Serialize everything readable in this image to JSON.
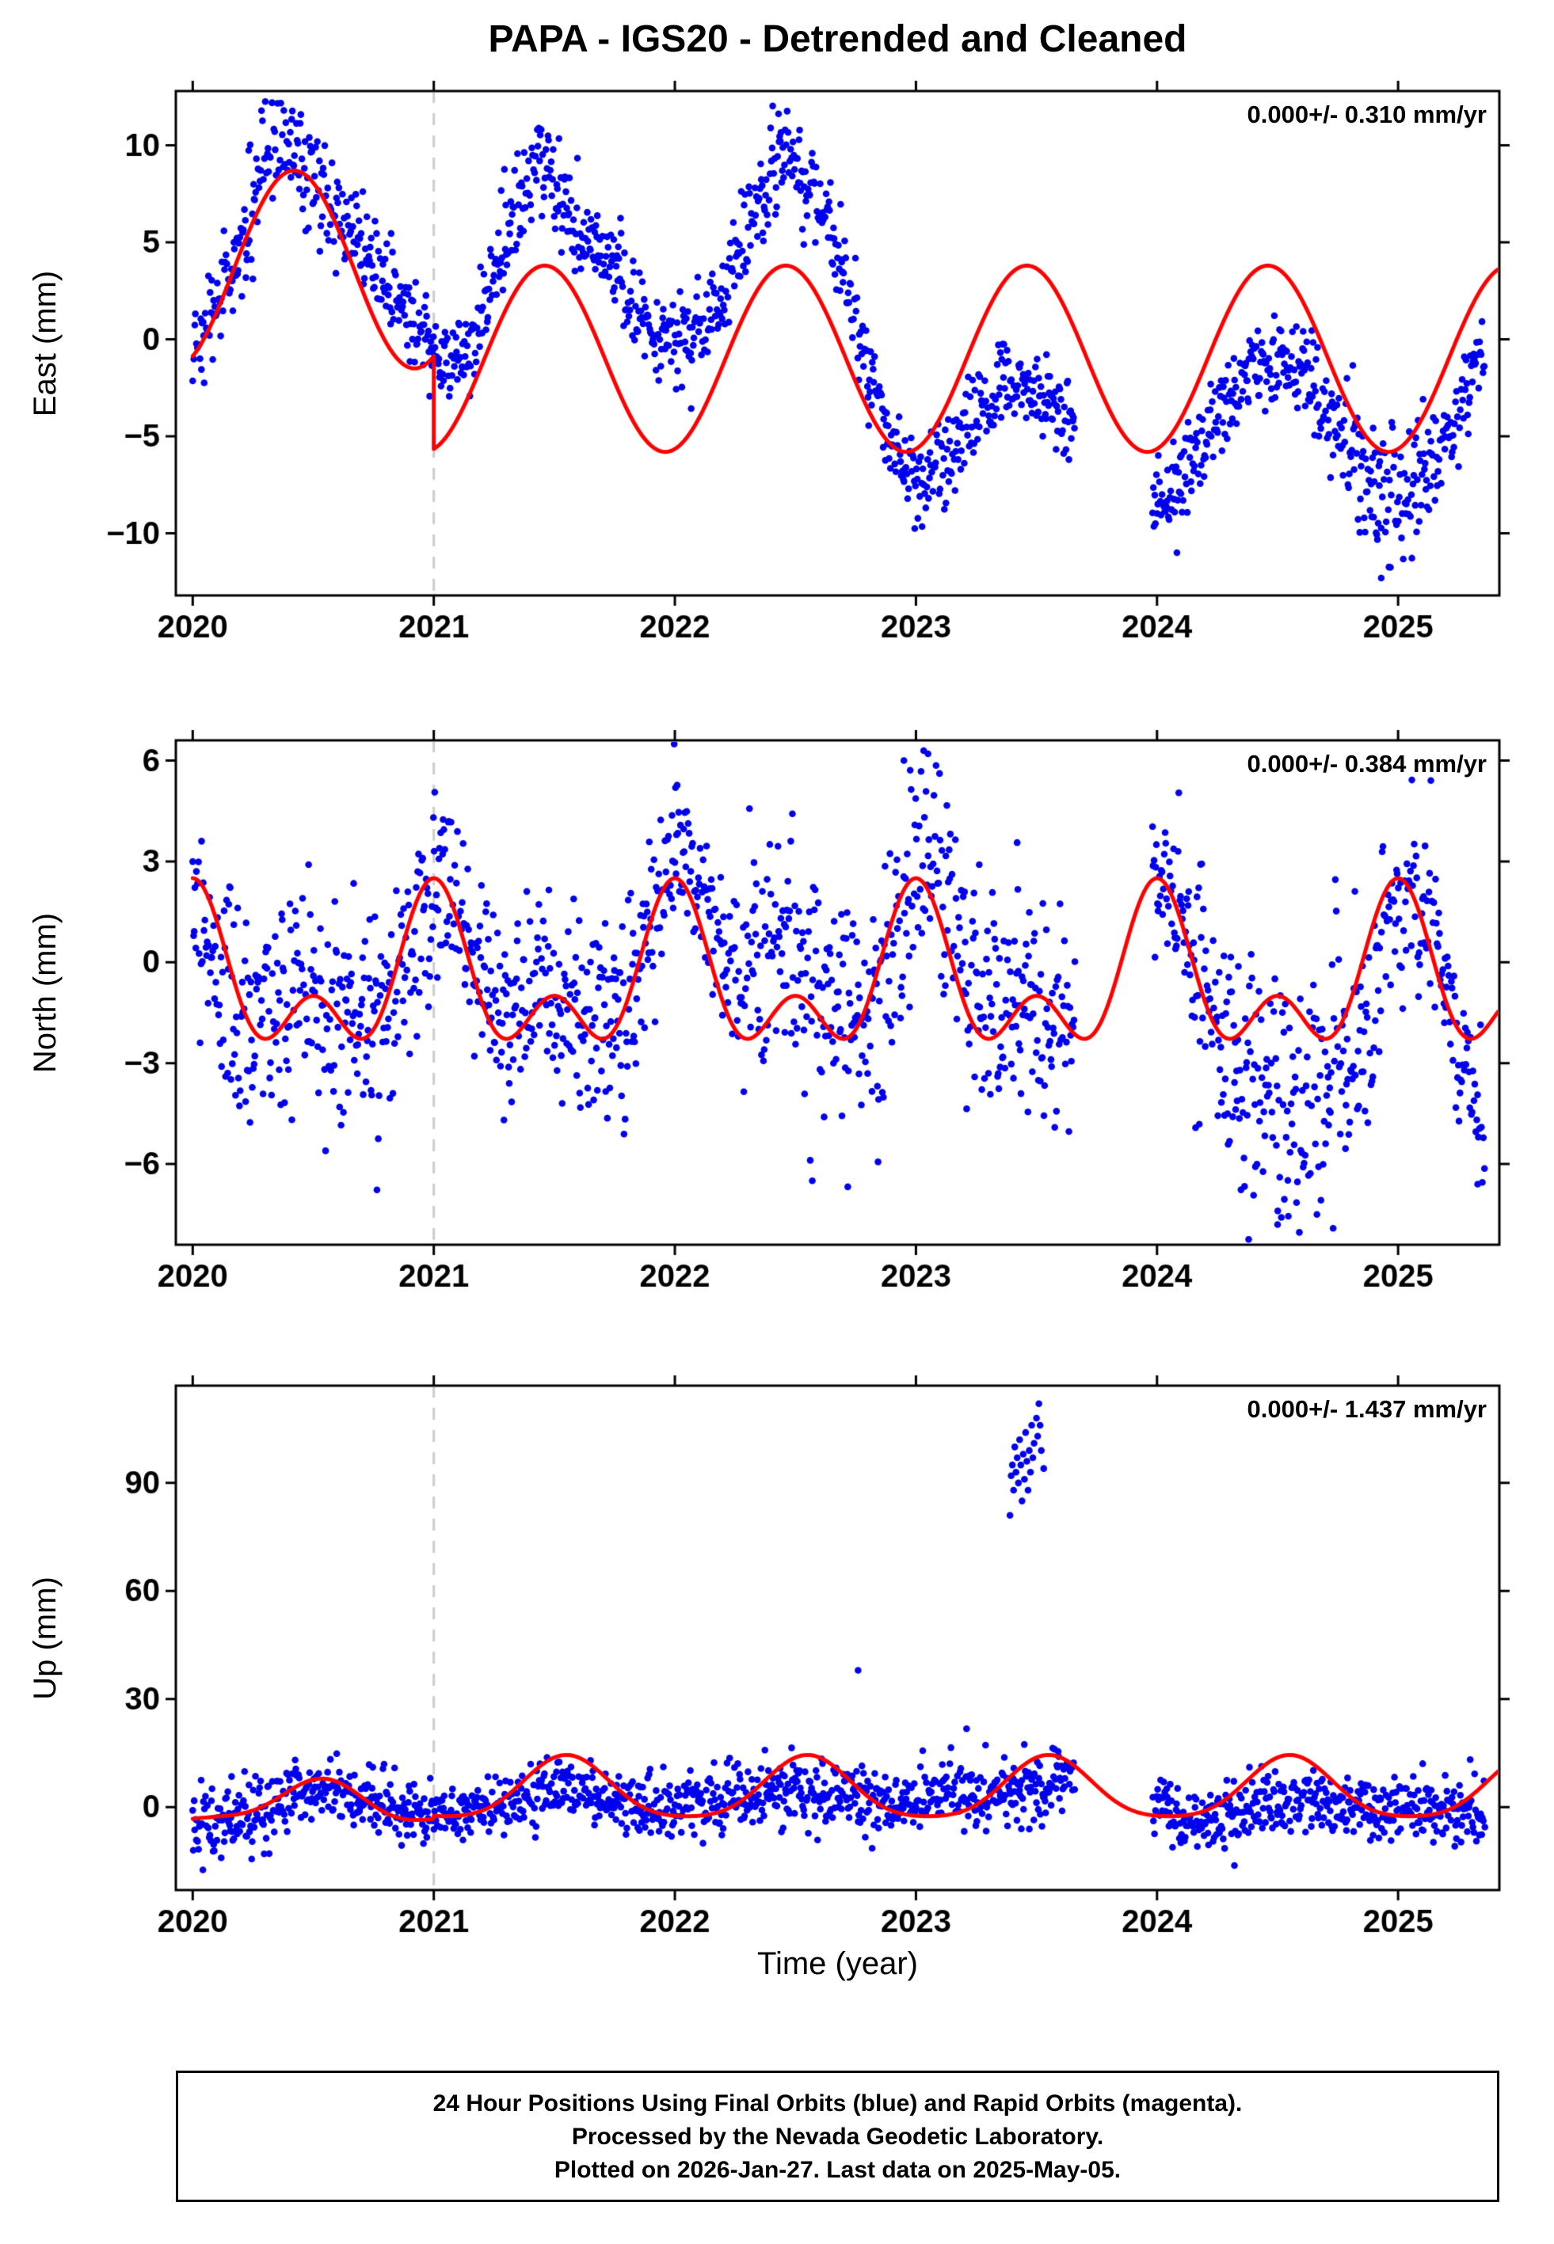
{
  "title": "PAPA - IGS20 - Detrended and Cleaned",
  "xlabel": "Time (year)",
  "footer": {
    "line1": "24 Hour Positions Using Final Orbits (blue) and Rapid Orbits (magenta).",
    "line2": "Processed by the Nevada Geodetic Laboratory.",
    "line3": "Plotted on 2026-Jan-27. Last data on 2025-May-05."
  },
  "colors": {
    "data": "#0000ee",
    "model": "#ff0000",
    "event_line": "#cccccc",
    "axis": "#000000"
  },
  "chart_data": [
    {
      "type": "scatter",
      "name": "east",
      "ylabel": "East (mm)",
      "rate_label": "0.000+/- 0.310 mm/yr",
      "xlim": [
        2019.93,
        2025.42
      ],
      "ylim": [
        -13.2,
        12.8
      ],
      "xticks": [
        2020,
        2021,
        2022,
        2023,
        2024,
        2025
      ],
      "yticks": [
        -10,
        -5,
        0,
        5,
        10
      ],
      "event_x": 2021.0,
      "model_segments": [
        {
          "t_start": 2020.0,
          "t_end": 2021.0,
          "mean": 3.6,
          "harmonics": [
            {
              "period": 1.0,
              "amp": 5.1,
              "peak": 0.42
            }
          ]
        },
        {
          "t_start": 2021.0,
          "t_end": 2025.42,
          "mean": -1.0,
          "harmonics": [
            {
              "period": 1.0,
              "amp": 4.8,
              "peak": 0.46
            }
          ]
        }
      ],
      "scatter": {
        "t_start": 2020.0,
        "t_end": 2025.36,
        "per_year": 300,
        "seed": 12345,
        "sigma": 1.2,
        "sigma_regions": [
          [
            2020.2,
            2020.6,
            1.8
          ],
          [
            2024.6,
            2025.15,
            1.7
          ]
        ],
        "gaps": [
          [
            2023.66,
            2023.98
          ]
        ],
        "mean_path": [
          [
            2020.0,
            -0.3
          ],
          [
            2020.08,
            1.2
          ],
          [
            2020.17,
            3.5
          ],
          [
            2020.25,
            6.5
          ],
          [
            2020.33,
            9.8
          ],
          [
            2020.42,
            10.3
          ],
          [
            2020.5,
            8.2
          ],
          [
            2020.58,
            6.8
          ],
          [
            2020.67,
            5.2
          ],
          [
            2020.75,
            4.0
          ],
          [
            2020.83,
            2.2
          ],
          [
            2020.92,
            0.6
          ],
          [
            2021.0,
            -0.4
          ],
          [
            2021.08,
            -1.2
          ],
          [
            2021.17,
            0.5
          ],
          [
            2021.25,
            3.5
          ],
          [
            2021.33,
            6.2
          ],
          [
            2021.42,
            8.8
          ],
          [
            2021.5,
            8.0
          ],
          [
            2021.58,
            5.4
          ],
          [
            2021.67,
            4.6
          ],
          [
            2021.75,
            3.6
          ],
          [
            2021.83,
            1.8
          ],
          [
            2021.92,
            0.4
          ],
          [
            2022.0,
            -0.2
          ],
          [
            2022.08,
            0.2
          ],
          [
            2022.17,
            1.6
          ],
          [
            2022.25,
            4.0
          ],
          [
            2022.33,
            6.6
          ],
          [
            2022.42,
            9.0
          ],
          [
            2022.5,
            9.2
          ],
          [
            2022.58,
            7.6
          ],
          [
            2022.67,
            4.6
          ],
          [
            2022.75,
            1.0
          ],
          [
            2022.83,
            -3.0
          ],
          [
            2022.92,
            -6.0
          ],
          [
            2023.0,
            -7.0
          ],
          [
            2023.08,
            -7.2
          ],
          [
            2023.17,
            -5.6
          ],
          [
            2023.25,
            -3.6
          ],
          [
            2023.33,
            -2.4
          ],
          [
            2023.42,
            -2.6
          ],
          [
            2023.5,
            -2.8
          ],
          [
            2023.58,
            -3.6
          ],
          [
            2023.65,
            -4.0
          ],
          [
            2024.0,
            -8.8
          ],
          [
            2024.08,
            -7.6
          ],
          [
            2024.17,
            -5.8
          ],
          [
            2024.25,
            -4.0
          ],
          [
            2024.33,
            -2.2
          ],
          [
            2024.42,
            -1.0
          ],
          [
            2024.5,
            -0.8
          ],
          [
            2024.58,
            -1.6
          ],
          [
            2024.67,
            -3.0
          ],
          [
            2024.75,
            -4.6
          ],
          [
            2024.83,
            -6.2
          ],
          [
            2024.92,
            -7.8
          ],
          [
            2025.0,
            -8.4
          ],
          [
            2025.08,
            -7.8
          ],
          [
            2025.17,
            -6.0
          ],
          [
            2025.25,
            -3.8
          ],
          [
            2025.33,
            -1.2
          ],
          [
            2025.36,
            -0.4
          ]
        ],
        "outliers": [
          [
            2020.33,
            12.2
          ],
          [
            2024.93,
            -12.3
          ]
        ]
      }
    },
    {
      "type": "scatter",
      "name": "north",
      "ylabel": "North (mm)",
      "rate_label": "0.000+/- 0.384 mm/yr",
      "xlim": [
        2019.93,
        2025.42
      ],
      "ylim": [
        -8.4,
        6.6
      ],
      "xticks": [
        2020,
        2021,
        2022,
        2023,
        2024,
        2025
      ],
      "yticks": [
        -6,
        -3,
        0,
        3,
        6
      ],
      "event_x": 2021.0,
      "model_segments": [
        {
          "t_start": 2020.0,
          "t_end": 2025.42,
          "mean": -0.625,
          "harmonics": [
            {
              "period": 1.0,
              "amp": 1.75,
              "peak": 0.0
            },
            {
              "period": 0.5,
              "amp": 1.375,
              "peak": 0.0
            }
          ]
        }
      ],
      "scatter": {
        "t_start": 2020.0,
        "t_end": 2025.36,
        "per_year": 300,
        "seed": 777,
        "sigma": 1.3,
        "sigma_regions": [
          [
            2020.1,
            2020.8,
            1.8
          ],
          [
            2022.3,
            2023.65,
            1.7
          ],
          [
            2024.15,
            2024.9,
            1.9
          ]
        ],
        "gaps": [
          [
            2023.66,
            2023.98
          ]
        ],
        "mean_path": [
          [
            2020.0,
            1.8
          ],
          [
            2020.05,
            0.6
          ],
          [
            2020.13,
            -0.8
          ],
          [
            2020.21,
            -1.6
          ],
          [
            2020.29,
            -1.8
          ],
          [
            2020.38,
            -1.4
          ],
          [
            2020.46,
            -0.9
          ],
          [
            2020.54,
            -1.2
          ],
          [
            2020.63,
            -1.6
          ],
          [
            2020.71,
            -1.8
          ],
          [
            2020.79,
            -1.6
          ],
          [
            2020.88,
            -0.6
          ],
          [
            2020.96,
            1.6
          ],
          [
            2021.0,
            2.4
          ],
          [
            2021.04,
            2.8
          ],
          [
            2021.13,
            1.2
          ],
          [
            2021.21,
            -0.6
          ],
          [
            2021.29,
            -1.6
          ],
          [
            2021.38,
            -1.2
          ],
          [
            2021.46,
            -0.6
          ],
          [
            2021.54,
            -1.0
          ],
          [
            2021.63,
            -1.5
          ],
          [
            2021.71,
            -1.6
          ],
          [
            2021.79,
            -1.0
          ],
          [
            2021.88,
            0.2
          ],
          [
            2021.96,
            2.0
          ],
          [
            2022.0,
            2.8
          ],
          [
            2022.04,
            3.2
          ],
          [
            2022.13,
            1.8
          ],
          [
            2022.21,
            0.2
          ],
          [
            2022.29,
            -0.4
          ],
          [
            2022.38,
            0.2
          ],
          [
            2022.46,
            0.4
          ],
          [
            2022.54,
            -0.4
          ],
          [
            2022.63,
            -1.2
          ],
          [
            2022.71,
            -1.6
          ],
          [
            2022.79,
            -1.2
          ],
          [
            2022.88,
            -0.4
          ],
          [
            2022.96,
            1.8
          ],
          [
            2023.0,
            2.8
          ],
          [
            2023.04,
            3.2
          ],
          [
            2023.13,
            1.6
          ],
          [
            2023.21,
            -0.4
          ],
          [
            2023.29,
            -1.4
          ],
          [
            2023.38,
            -1.2
          ],
          [
            2023.46,
            -0.9
          ],
          [
            2023.54,
            -1.4
          ],
          [
            2023.63,
            -1.8
          ],
          [
            2024.0,
            2.2
          ],
          [
            2024.04,
            2.4
          ],
          [
            2024.13,
            1.0
          ],
          [
            2024.21,
            -0.8
          ],
          [
            2024.29,
            -2.4
          ],
          [
            2024.38,
            -3.4
          ],
          [
            2024.46,
            -3.8
          ],
          [
            2024.54,
            -4.0
          ],
          [
            2024.63,
            -4.0
          ],
          [
            2024.71,
            -3.4
          ],
          [
            2024.79,
            -2.6
          ],
          [
            2024.88,
            -1.4
          ],
          [
            2024.96,
            1.2
          ],
          [
            2025.0,
            1.8
          ],
          [
            2025.04,
            2.2
          ],
          [
            2025.13,
            0.8
          ],
          [
            2025.21,
            -1.2
          ],
          [
            2025.29,
            -3.2
          ],
          [
            2025.36,
            -4.6
          ]
        ],
        "outliers": [
          [
            2022.57,
            -6.5
          ],
          [
            2024.5,
            -7.8
          ],
          [
            2023.05,
            6.2
          ],
          [
            2022.95,
            6.0
          ],
          [
            2025.33,
            -6.6
          ]
        ]
      }
    },
    {
      "type": "scatter",
      "name": "up",
      "ylabel": "Up (mm)",
      "rate_label": "0.000+/- 1.437 mm/yr",
      "xlim": [
        2019.93,
        2025.42
      ],
      "ylim": [
        -23,
        117
      ],
      "xticks": [
        2020,
        2021,
        2022,
        2023,
        2024,
        2025
      ],
      "yticks": [
        0,
        30,
        60,
        90
      ],
      "event_x": 2021.0,
      "model_segments": [
        {
          "t_start": 2020.0,
          "t_end": 2021.0,
          "mean": 1.0,
          "harmonics": [
            {
              "period": 1.0,
              "amp": 5.5,
              "peak": 0.52
            },
            {
              "period": 0.5,
              "amp": 1.5,
              "peak": 0.05
            }
          ]
        },
        {
          "t_start": 2021.0,
          "t_end": 2025.42,
          "mean": 4.5,
          "harmonics": [
            {
              "period": 1.0,
              "amp": 8.5,
              "peak": 0.55
            },
            {
              "period": 0.5,
              "amp": 1.5,
              "peak": 0.05
            }
          ]
        }
      ],
      "scatter": {
        "t_start": 2020.0,
        "t_end": 2025.36,
        "per_year": 300,
        "seed": 424242,
        "sigma": 4.2,
        "sigma_regions": [
          [
            2020.0,
            2020.35,
            6.0
          ],
          [
            2022.35,
            2023.65,
            5.0
          ]
        ],
        "gaps": [
          [
            2023.66,
            2023.98
          ]
        ],
        "mean_path": [
          [
            2020.0,
            -5.0
          ],
          [
            2020.08,
            -4.0
          ],
          [
            2020.17,
            -2.5
          ],
          [
            2020.25,
            -1.0
          ],
          [
            2020.33,
            0.5
          ],
          [
            2020.42,
            2.5
          ],
          [
            2020.5,
            3.5
          ],
          [
            2020.58,
            3.0
          ],
          [
            2020.67,
            2.0
          ],
          [
            2020.75,
            1.5
          ],
          [
            2020.83,
            0.0
          ],
          [
            2020.92,
            -1.5
          ],
          [
            2021.0,
            -1.0
          ],
          [
            2021.08,
            -1.5
          ],
          [
            2021.17,
            -1.0
          ],
          [
            2021.25,
            0.0
          ],
          [
            2021.33,
            1.5
          ],
          [
            2021.42,
            3.5
          ],
          [
            2021.5,
            4.5
          ],
          [
            2021.58,
            4.0
          ],
          [
            2021.67,
            2.5
          ],
          [
            2021.75,
            1.5
          ],
          [
            2021.83,
            0.5
          ],
          [
            2021.92,
            0.0
          ],
          [
            2022.0,
            0.5
          ],
          [
            2022.08,
            1.0
          ],
          [
            2022.17,
            1.5
          ],
          [
            2022.25,
            2.0
          ],
          [
            2022.33,
            2.5
          ],
          [
            2022.42,
            4.0
          ],
          [
            2022.5,
            5.0
          ],
          [
            2022.58,
            4.0
          ],
          [
            2022.67,
            3.0
          ],
          [
            2022.75,
            2.5
          ],
          [
            2022.83,
            2.0
          ],
          [
            2022.92,
            2.0
          ],
          [
            2023.0,
            2.5
          ],
          [
            2023.08,
            3.5
          ],
          [
            2023.17,
            4.5
          ],
          [
            2023.25,
            4.0
          ],
          [
            2023.33,
            4.5
          ],
          [
            2023.42,
            5.0
          ],
          [
            2023.5,
            6.5
          ],
          [
            2023.58,
            9.0
          ],
          [
            2023.65,
            11.0
          ],
          [
            2024.0,
            -0.5
          ],
          [
            2024.08,
            -2.0
          ],
          [
            2024.17,
            -3.5
          ],
          [
            2024.25,
            -3.0
          ],
          [
            2024.33,
            -1.5
          ],
          [
            2024.42,
            0.0
          ],
          [
            2024.5,
            1.0
          ],
          [
            2024.58,
            1.5
          ],
          [
            2024.67,
            1.0
          ],
          [
            2024.75,
            0.0
          ],
          [
            2024.83,
            -1.0
          ],
          [
            2024.92,
            -1.5
          ],
          [
            2025.0,
            -1.0
          ],
          [
            2025.08,
            -0.5
          ],
          [
            2025.17,
            0.0
          ],
          [
            2025.25,
            -1.0
          ],
          [
            2025.33,
            -1.5
          ],
          [
            2025.36,
            -1.0
          ]
        ],
        "outliers": [
          [
            2022.76,
            38
          ],
          [
            2023.39,
            81
          ],
          [
            2023.395,
            92
          ],
          [
            2023.4,
            95
          ],
          [
            2023.405,
            88
          ],
          [
            2023.41,
            100
          ],
          [
            2023.415,
            93
          ],
          [
            2023.42,
            97
          ],
          [
            2023.425,
            90
          ],
          [
            2023.43,
            102
          ],
          [
            2023.435,
            95
          ],
          [
            2023.44,
            85
          ],
          [
            2023.445,
            98
          ],
          [
            2023.45,
            91
          ],
          [
            2023.455,
            104
          ],
          [
            2023.46,
            96
          ],
          [
            2023.465,
            88
          ],
          [
            2023.47,
            99
          ],
          [
            2023.475,
            93
          ],
          [
            2023.48,
            106
          ],
          [
            2023.485,
            97
          ],
          [
            2023.49,
            101
          ],
          [
            2023.5,
            108
          ],
          [
            2023.505,
            103
          ],
          [
            2023.51,
            112
          ],
          [
            2023.515,
            106
          ],
          [
            2023.52,
            99
          ],
          [
            2023.53,
            94
          ]
        ]
      }
    }
  ]
}
